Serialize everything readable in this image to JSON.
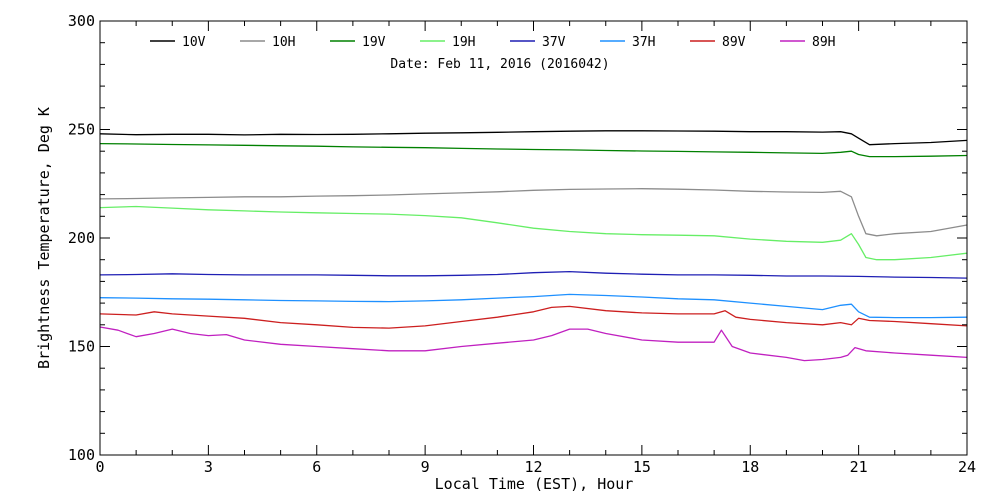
{
  "chart_data": {
    "type": "line",
    "title": "",
    "annotation": "Date: Feb 11, 2016 (2016042)",
    "xlabel": "Local Time (EST), Hour",
    "ylabel": "Brightness Temperature, Deg K",
    "xlim": [
      0,
      24
    ],
    "ylim": [
      100,
      300
    ],
    "xticks": [
      0,
      3,
      6,
      9,
      12,
      15,
      18,
      21,
      24
    ],
    "yticks": [
      100,
      150,
      200,
      250,
      300
    ],
    "grid": false,
    "legend_position": "top",
    "series": [
      {
        "name": "10V",
        "color": "#000000",
        "x": [
          0,
          1,
          2,
          3,
          4,
          5,
          6,
          7,
          8,
          9,
          10,
          11,
          12,
          13,
          14,
          15,
          16,
          17,
          18,
          19,
          20,
          20.5,
          20.8,
          21,
          21.3,
          22,
          23,
          24
        ],
        "y": [
          248,
          247.6,
          247.8,
          247.8,
          247.5,
          247.8,
          247.7,
          247.8,
          248,
          248.3,
          248.5,
          248.7,
          249,
          249.2,
          249.4,
          249.4,
          249.3,
          249.2,
          249,
          249,
          248.8,
          249,
          248,
          246,
          243,
          243.5,
          244,
          245
        ]
      },
      {
        "name": "10H",
        "color": "#8c8c8c",
        "x": [
          0,
          1,
          2,
          3,
          4,
          5,
          6,
          7,
          8,
          9,
          10,
          11,
          12,
          13,
          14,
          15,
          16,
          17,
          18,
          19,
          20,
          20.5,
          20.8,
          21,
          21.2,
          21.5,
          22,
          23,
          24
        ],
        "y": [
          218,
          218.2,
          218.5,
          218.7,
          219,
          219,
          219.3,
          219.5,
          219.8,
          220.3,
          220.8,
          221.3,
          222,
          222.4,
          222.6,
          222.7,
          222.5,
          222.1,
          221.5,
          221.2,
          221,
          221.5,
          219,
          210,
          202,
          201,
          202,
          203,
          206
        ]
      },
      {
        "name": "19V",
        "color": "#008000",
        "x": [
          0,
          1,
          2,
          3,
          4,
          5,
          6,
          7,
          8,
          9,
          10,
          11,
          12,
          13,
          14,
          15,
          16,
          17,
          18,
          19,
          20,
          20.5,
          20.8,
          21,
          21.3,
          22,
          23,
          24
        ],
        "y": [
          243.5,
          243.3,
          243.1,
          242.9,
          242.7,
          242.5,
          242.3,
          242,
          241.8,
          241.6,
          241.3,
          241,
          240.8,
          240.6,
          240.3,
          240.1,
          239.9,
          239.7,
          239.5,
          239.2,
          239,
          239.5,
          240,
          238.5,
          237.5,
          237.5,
          237.7,
          238
        ]
      },
      {
        "name": "19H",
        "color": "#66ee66",
        "x": [
          0,
          1,
          2,
          3,
          4,
          5,
          6,
          7,
          8,
          9,
          10,
          11,
          12,
          13,
          14,
          15,
          16,
          17,
          18,
          19,
          20,
          20.5,
          20.8,
          21,
          21.2,
          21.5,
          22,
          23,
          24
        ],
        "y": [
          214,
          214.5,
          213.8,
          213,
          212.5,
          212,
          211.6,
          211.3,
          211,
          210.3,
          209.3,
          207,
          204.5,
          203,
          202,
          201.5,
          201.3,
          201,
          199.5,
          198.5,
          198,
          199,
          202,
          197,
          191,
          190,
          190,
          191,
          193
        ]
      },
      {
        "name": "37V",
        "color": "#1f1fb4",
        "x": [
          0,
          1,
          2,
          3,
          4,
          5,
          6,
          7,
          8,
          9,
          10,
          11,
          12,
          13,
          14,
          15,
          16,
          17,
          18,
          19,
          20,
          21,
          22,
          23,
          24
        ],
        "y": [
          183,
          183.2,
          183.5,
          183.2,
          183,
          183,
          183,
          182.8,
          182.6,
          182.6,
          182.8,
          183.2,
          184,
          184.5,
          183.8,
          183.3,
          183,
          183,
          182.8,
          182.5,
          182.5,
          182.3,
          182,
          181.8,
          181.5
        ]
      },
      {
        "name": "37H",
        "color": "#1e90ff",
        "x": [
          0,
          1,
          2,
          3,
          4,
          5,
          6,
          7,
          8,
          9,
          10,
          11,
          12,
          13,
          14,
          15,
          16,
          17,
          18,
          19,
          20,
          20.5,
          20.8,
          21,
          21.3,
          22,
          23,
          24
        ],
        "y": [
          172.5,
          172.3,
          172,
          171.8,
          171.5,
          171.2,
          171,
          170.8,
          170.7,
          171,
          171.5,
          172.3,
          173,
          174,
          173.5,
          172.8,
          172,
          171.5,
          170,
          168.5,
          167,
          169,
          169.5,
          166,
          163.5,
          163.3,
          163.3,
          163.5
        ]
      },
      {
        "name": "89V",
        "color": "#cc1f1f",
        "x": [
          0,
          1,
          1.5,
          2,
          3,
          4,
          5,
          6,
          7,
          8,
          9,
          10,
          11,
          12,
          12.5,
          13,
          14,
          15,
          16,
          17,
          17.3,
          17.6,
          18,
          19,
          20,
          20.5,
          20.8,
          21,
          21.3,
          22,
          23,
          24
        ],
        "y": [
          165,
          164.5,
          166,
          165,
          164,
          163,
          161,
          160,
          158.8,
          158.5,
          159.5,
          161.5,
          163.5,
          166,
          168,
          168.5,
          166.5,
          165.5,
          165,
          165,
          166.5,
          163.5,
          162.5,
          161,
          160,
          161,
          160,
          163,
          162,
          161.5,
          160.5,
          159.5
        ]
      },
      {
        "name": "89H",
        "color": "#c020c0",
        "x": [
          0,
          0.5,
          1,
          1.5,
          2,
          2.5,
          3,
          3.5,
          4,
          5,
          6,
          7,
          8,
          9,
          10,
          11,
          12,
          12.5,
          13,
          13.5,
          14,
          15,
          16,
          17,
          17.2,
          17.5,
          18,
          19,
          19.5,
          20,
          20.5,
          20.7,
          20.9,
          21.2,
          22,
          23,
          24
        ],
        "y": [
          159,
          157.5,
          154.5,
          156,
          158,
          156,
          155,
          155.5,
          153,
          151,
          150,
          149,
          148,
          148,
          150,
          151.5,
          153,
          155,
          158,
          158,
          156,
          153,
          152,
          152,
          157.5,
          150,
          147,
          145,
          143.5,
          144,
          145,
          146,
          149.5,
          148,
          147,
          146,
          145
        ]
      }
    ]
  }
}
